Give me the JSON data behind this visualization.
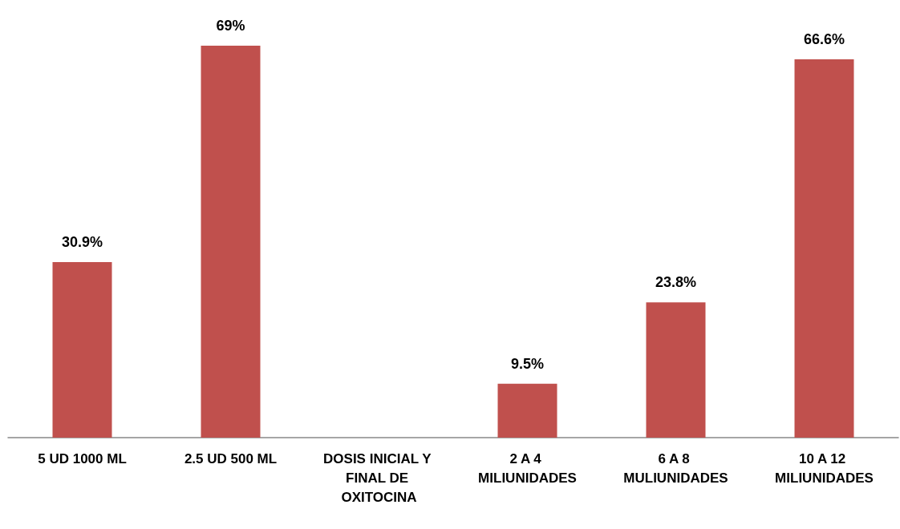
{
  "chart_data": {
    "type": "bar",
    "categories": [
      "5 UD 1000 ML",
      "2.5 UD 500 ML",
      "DOSIS INICIAL Y FINAL DE OXITOCINA",
      "2 A 4 MILIUNIDADES",
      "6 A 8 MULIUNIDADES",
      "10 A 12 MILIUNIDADES"
    ],
    "values": [
      30.9,
      69,
      null,
      9.5,
      23.8,
      66.6
    ],
    "value_labels": [
      "30.9%",
      "69%",
      null,
      "9.5%",
      "23.8%",
      "66.6%"
    ],
    "color": "#c0504d"
  }
}
